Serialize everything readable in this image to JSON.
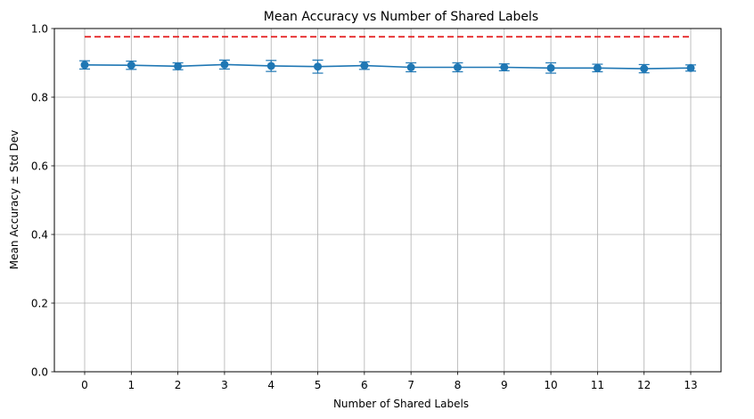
{
  "chart_data": {
    "type": "line",
    "title": "Mean Accuracy vs Number of Shared Labels",
    "xlabel": "Number of Shared Labels",
    "ylabel": "Mean Accuracy ± Std Dev",
    "x": [
      0,
      1,
      2,
      3,
      4,
      5,
      6,
      7,
      8,
      9,
      10,
      11,
      12,
      13
    ],
    "xlim": [
      -0.65,
      13.65
    ],
    "ylim": [
      0.0,
      1.0
    ],
    "yticks": [
      0.0,
      0.2,
      0.4,
      0.6,
      0.8,
      1.0
    ],
    "grid": true,
    "series": [
      {
        "values": [
          0.894,
          0.893,
          0.89,
          0.895,
          0.891,
          0.889,
          0.892,
          0.887,
          0.887,
          0.887,
          0.885,
          0.885,
          0.883,
          0.885
        ],
        "errors": [
          0.012,
          0.012,
          0.01,
          0.013,
          0.016,
          0.019,
          0.011,
          0.013,
          0.013,
          0.01,
          0.015,
          0.011,
          0.012,
          0.009
        ],
        "color": "#1f77b4",
        "marker": "circle",
        "error_bars": true
      },
      {
        "style": "dashed",
        "color": "#e41a1c",
        "x_range": [
          0,
          13
        ],
        "value": 0.976
      }
    ]
  }
}
